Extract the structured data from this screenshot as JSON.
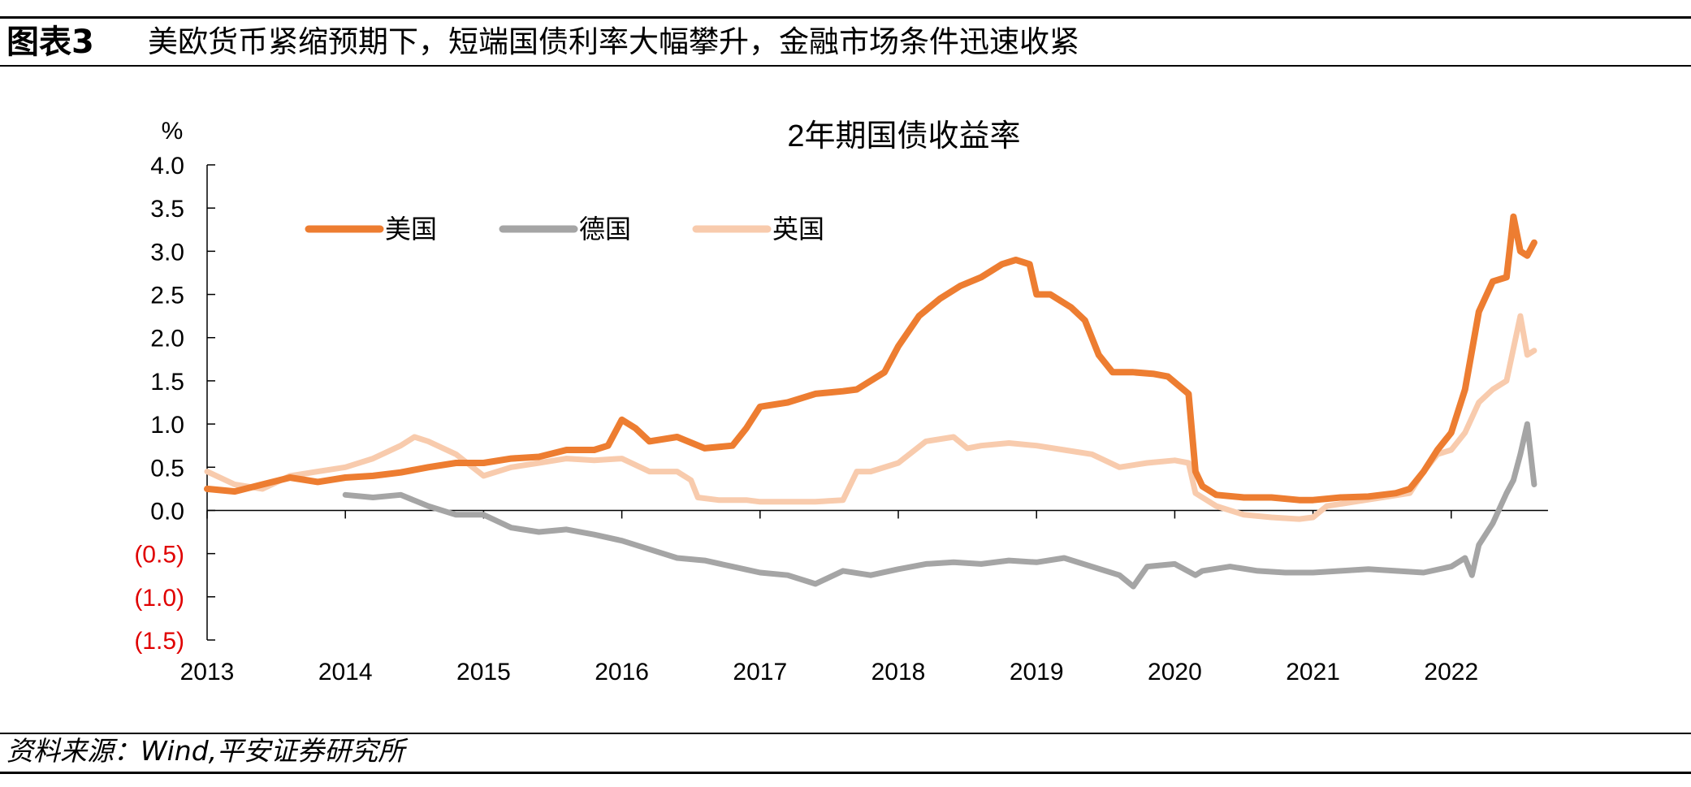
{
  "header": {
    "label": "图表3",
    "title": "美欧货币紧缩预期下，短端国债利率大幅攀升，金融市场条件迅速收紧"
  },
  "source": "资料来源：Wind,平安证券研究所",
  "colors": {
    "us": "#ED7D31",
    "de": "#A5A5A5",
    "uk": "#F8CBAD",
    "negative_tick": "#E00000"
  },
  "chart_data": {
    "type": "line",
    "title": "2年期国债收益率",
    "ylabel": "%",
    "xlabel": "",
    "ylim": [
      -1.5,
      4.0
    ],
    "xlim": [
      2013.0,
      2022.7
    ],
    "yticks": [
      {
        "value": 4.0,
        "label": "4.0"
      },
      {
        "value": 3.5,
        "label": "3.5"
      },
      {
        "value": 3.0,
        "label": "3.0"
      },
      {
        "value": 2.5,
        "label": "2.5"
      },
      {
        "value": 2.0,
        "label": "2.0"
      },
      {
        "value": 1.5,
        "label": "1.5"
      },
      {
        "value": 1.0,
        "label": "1.0"
      },
      {
        "value": 0.5,
        "label": "0.5"
      },
      {
        "value": 0.0,
        "label": "0.0"
      },
      {
        "value": -0.5,
        "label": "(0.5)"
      },
      {
        "value": -1.0,
        "label": "(1.0)"
      },
      {
        "value": -1.5,
        "label": "(1.5)"
      }
    ],
    "xticks": [
      "2013",
      "2014",
      "2015",
      "2016",
      "2017",
      "2018",
      "2019",
      "2020",
      "2021",
      "2022"
    ],
    "legend_position": "top-left",
    "grid": false,
    "series": [
      {
        "name": "美国",
        "key": "us",
        "x": [
          2013.0,
          2013.2,
          2013.4,
          2013.6,
          2013.8,
          2014.0,
          2014.2,
          2014.4,
          2014.6,
          2014.8,
          2015.0,
          2015.2,
          2015.4,
          2015.6,
          2015.8,
          2015.9,
          2016.0,
          2016.1,
          2016.2,
          2016.4,
          2016.6,
          2016.8,
          2016.9,
          2017.0,
          2017.2,
          2017.4,
          2017.6,
          2017.7,
          2017.8,
          2017.9,
          2018.0,
          2018.15,
          2018.3,
          2018.45,
          2018.6,
          2018.75,
          2018.85,
          2018.95,
          2019.0,
          2019.1,
          2019.25,
          2019.35,
          2019.45,
          2019.55,
          2019.7,
          2019.85,
          2019.95,
          2020.1,
          2020.15,
          2020.2,
          2020.3,
          2020.5,
          2020.7,
          2020.9,
          2021.0,
          2021.2,
          2021.4,
          2021.6,
          2021.7,
          2021.8,
          2021.9,
          2022.0,
          2022.1,
          2022.2,
          2022.3,
          2022.4,
          2022.45,
          2022.5,
          2022.55,
          2022.6
        ],
        "values": [
          0.25,
          0.22,
          0.3,
          0.38,
          0.33,
          0.38,
          0.4,
          0.44,
          0.5,
          0.55,
          0.55,
          0.6,
          0.62,
          0.7,
          0.7,
          0.75,
          1.05,
          0.95,
          0.8,
          0.85,
          0.72,
          0.75,
          0.95,
          1.2,
          1.25,
          1.35,
          1.38,
          1.4,
          1.5,
          1.6,
          1.9,
          2.25,
          2.45,
          2.6,
          2.7,
          2.85,
          2.9,
          2.85,
          2.5,
          2.5,
          2.35,
          2.2,
          1.8,
          1.6,
          1.6,
          1.58,
          1.55,
          1.35,
          0.45,
          0.28,
          0.18,
          0.15,
          0.15,
          0.12,
          0.12,
          0.15,
          0.16,
          0.2,
          0.25,
          0.45,
          0.7,
          0.9,
          1.4,
          2.3,
          2.65,
          2.7,
          3.4,
          3.0,
          2.95,
          3.1
        ]
      },
      {
        "name": "德国",
        "key": "de",
        "x": [
          2014.0,
          2014.2,
          2014.4,
          2014.6,
          2014.8,
          2015.0,
          2015.2,
          2015.4,
          2015.6,
          2015.8,
          2016.0,
          2016.2,
          2016.4,
          2016.6,
          2016.8,
          2017.0,
          2017.2,
          2017.4,
          2017.6,
          2017.8,
          2018.0,
          2018.2,
          2018.4,
          2018.6,
          2018.8,
          2019.0,
          2019.2,
          2019.4,
          2019.6,
          2019.7,
          2019.8,
          2020.0,
          2020.15,
          2020.2,
          2020.4,
          2020.6,
          2020.8,
          2021.0,
          2021.2,
          2021.4,
          2021.6,
          2021.8,
          2022.0,
          2022.1,
          2022.15,
          2022.2,
          2022.3,
          2022.4,
          2022.45,
          2022.5,
          2022.55,
          2022.6
        ],
        "values": [
          0.18,
          0.15,
          0.18,
          0.05,
          -0.05,
          -0.05,
          -0.2,
          -0.25,
          -0.22,
          -0.28,
          -0.35,
          -0.45,
          -0.55,
          -0.58,
          -0.65,
          -0.72,
          -0.75,
          -0.85,
          -0.7,
          -0.75,
          -0.68,
          -0.62,
          -0.6,
          -0.62,
          -0.58,
          -0.6,
          -0.55,
          -0.65,
          -0.75,
          -0.88,
          -0.65,
          -0.62,
          -0.75,
          -0.7,
          -0.65,
          -0.7,
          -0.72,
          -0.72,
          -0.7,
          -0.68,
          -0.7,
          -0.72,
          -0.65,
          -0.55,
          -0.75,
          -0.4,
          -0.15,
          0.2,
          0.35,
          0.65,
          1.0,
          0.3
        ]
      },
      {
        "name": "英国",
        "key": "uk",
        "x": [
          2013.0,
          2013.2,
          2013.4,
          2013.6,
          2013.8,
          2014.0,
          2014.2,
          2014.4,
          2014.5,
          2014.6,
          2014.8,
          2015.0,
          2015.2,
          2015.4,
          2015.6,
          2015.8,
          2016.0,
          2016.2,
          2016.4,
          2016.5,
          2016.55,
          2016.7,
          2016.9,
          2017.0,
          2017.2,
          2017.4,
          2017.6,
          2017.7,
          2017.8,
          2018.0,
          2018.2,
          2018.4,
          2018.5,
          2018.6,
          2018.8,
          2019.0,
          2019.2,
          2019.4,
          2019.6,
          2019.8,
          2020.0,
          2020.1,
          2020.15,
          2020.3,
          2020.5,
          2020.7,
          2020.9,
          2021.0,
          2021.1,
          2021.3,
          2021.5,
          2021.7,
          2021.8,
          2021.9,
          2022.0,
          2022.1,
          2022.2,
          2022.3,
          2022.4,
          2022.5,
          2022.55,
          2022.6
        ],
        "values": [
          0.45,
          0.3,
          0.25,
          0.4,
          0.45,
          0.5,
          0.6,
          0.75,
          0.85,
          0.8,
          0.65,
          0.4,
          0.5,
          0.55,
          0.6,
          0.58,
          0.6,
          0.45,
          0.45,
          0.35,
          0.15,
          0.12,
          0.12,
          0.1,
          0.1,
          0.1,
          0.12,
          0.45,
          0.45,
          0.55,
          0.8,
          0.85,
          0.72,
          0.75,
          0.78,
          0.75,
          0.7,
          0.65,
          0.5,
          0.55,
          0.58,
          0.55,
          0.2,
          0.05,
          -0.05,
          -0.08,
          -0.1,
          -0.08,
          0.05,
          0.1,
          0.15,
          0.2,
          0.45,
          0.65,
          0.7,
          0.9,
          1.25,
          1.4,
          1.5,
          2.25,
          1.8,
          1.85
        ]
      }
    ]
  }
}
